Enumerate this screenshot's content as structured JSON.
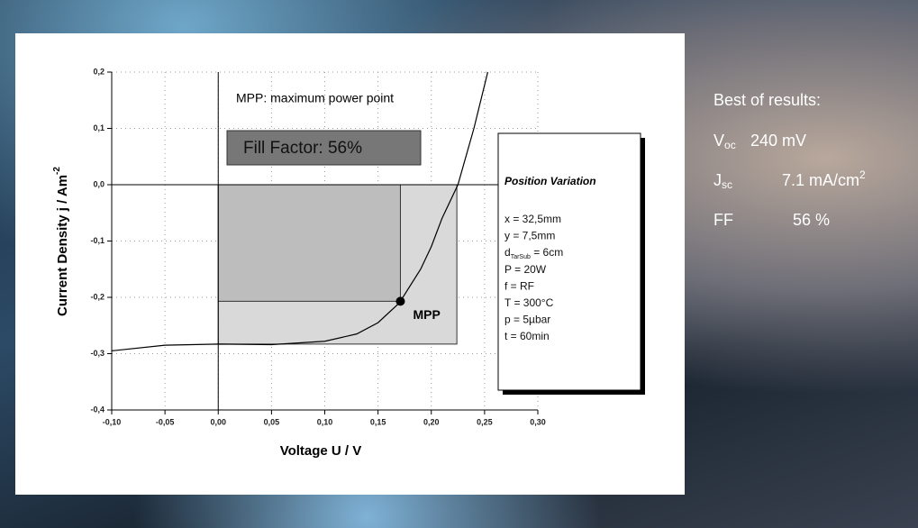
{
  "chart_data": {
    "type": "line",
    "annotation": "MPP: maximum power point",
    "fill_factor": "Fill Factor:  56%",
    "mpp_label": "MPP",
    "x_label": "Voltage U / V",
    "y_label": "Current Density j / Am",
    "y_label_sup": "-2",
    "xlim": [
      -0.1,
      0.3
    ],
    "ylim": [
      -0.4,
      0.2
    ],
    "xticks": [
      {
        "value": -0.1,
        "label": "-0,10"
      },
      {
        "value": -0.05,
        "label": "-0,05"
      },
      {
        "value": 0,
        "label": "0,00"
      },
      {
        "value": 0.05,
        "label": "0,05"
      },
      {
        "value": 0.1,
        "label": "0,10"
      },
      {
        "value": 0.15,
        "label": "0,15"
      },
      {
        "value": 0.2,
        "label": "0,20"
      },
      {
        "value": 0.25,
        "label": "0,25"
      },
      {
        "value": 0.3,
        "label": "0,30"
      }
    ],
    "yticks": [
      {
        "value": 0.2,
        "label": "0,2"
      },
      {
        "value": 0.1,
        "label": "0,1"
      },
      {
        "value": 0,
        "label": "0,0"
      },
      {
        "value": -0.1,
        "label": "-0,1"
      },
      {
        "value": -0.2,
        "label": "-0,2"
      },
      {
        "value": -0.3,
        "label": "-0,3"
      },
      {
        "value": -0.4,
        "label": "-0,4"
      }
    ],
    "grid": true,
    "x": [
      -0.1,
      -0.05,
      0,
      0.05,
      0.1,
      0.13,
      0.15,
      0.17,
      0.19,
      0.2,
      0.21,
      0.225,
      0.24,
      0.253
    ],
    "values": [
      -0.295,
      -0.285,
      -0.283,
      -0.284,
      -0.278,
      -0.265,
      -0.245,
      -0.21,
      -0.15,
      -0.11,
      -0.06,
      0,
      0.1,
      0.2
    ],
    "color": "#000000",
    "mpp": [
      0.171,
      -0.207
    ],
    "voc": 0.224,
    "jsc": -0.283,
    "legend": {
      "title": "Position Variation",
      "items": [
        {
          "text": "x = 32,5mm"
        },
        {
          "text": "y = 7,5mm"
        },
        {
          "text": "d",
          "sub": "TarSub",
          "rest": " = 6cm"
        },
        {
          "text": "P = 20W"
        },
        {
          "text": "f = RF"
        },
        {
          "text": "T = 300°C"
        },
        {
          "text": "p = 5µbar"
        },
        {
          "text": "t = 60min"
        }
      ]
    }
  },
  "results": {
    "title": "Best of results:",
    "rows": [
      {
        "symbol": "V",
        "sub": "oc",
        "value": "240 mV"
      },
      {
        "symbol": "J",
        "sub": "sc",
        "value": "7.1 mA/cm",
        "sup": "2"
      },
      {
        "symbol": "FF",
        "value": "56 %"
      }
    ]
  }
}
